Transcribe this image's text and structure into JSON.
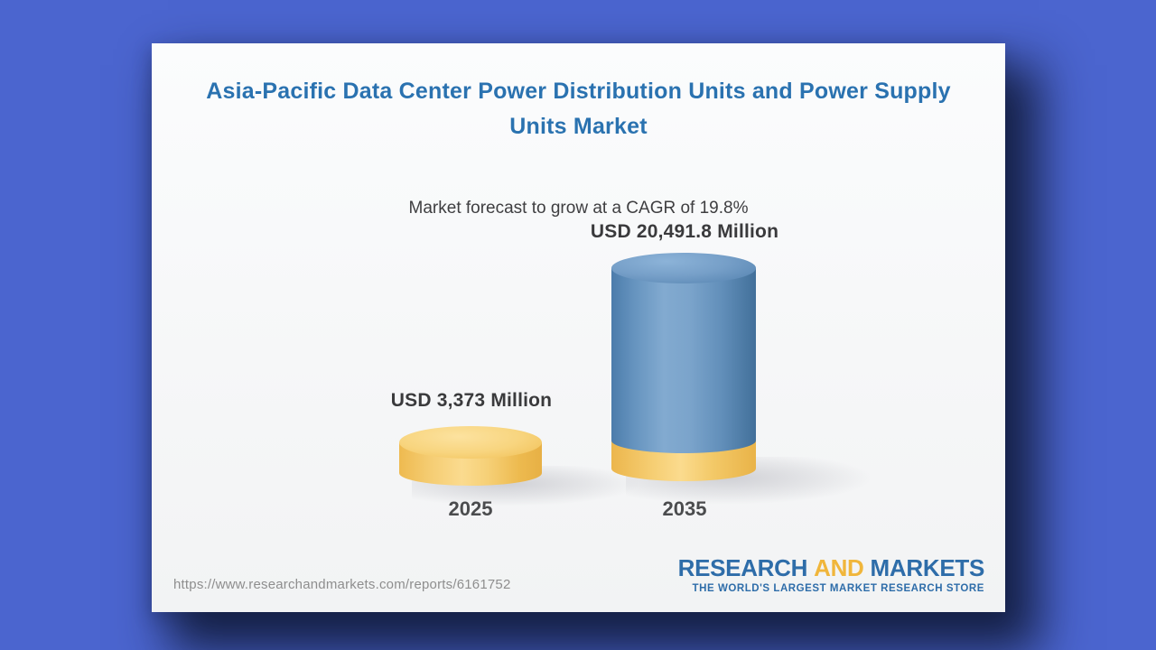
{
  "page": {
    "background_color": "#4b65cf",
    "card_color": "#f7f8f9",
    "shadow_color": "#13203f"
  },
  "chart_data": {
    "type": "bar",
    "title": "Asia-Pacific Data Center Power Distribution Units and Power Supply Units Market",
    "subtitle": "Market forecast to grow at a CAGR of 19.8%",
    "cagr_percent": 19.8,
    "unit": "USD Million",
    "categories": [
      "2025",
      "2035"
    ],
    "values": [
      3373,
      20491.8
    ],
    "bars": [
      {
        "category": "2025",
        "value": 3373,
        "label": "USD 3,373 Million",
        "color": "#f3c869"
      },
      {
        "category": "2035",
        "value": 20491.8,
        "label": "USD 20,491.8 Million",
        "color": "#6d9cc6",
        "base_color": "#f3c869"
      }
    ],
    "title_color": "#2a72b0",
    "label_color": "#3a3a3c",
    "legend": "none",
    "grid": "off"
  },
  "footer": {
    "url": "https://www.researchandmarkets.com/reports/6161752",
    "logo": {
      "word1": "RESEARCH",
      "word2": "AND",
      "word3": "MARKETS",
      "tagline": "THE WORLD'S LARGEST MARKET RESEARCH STORE",
      "blue": "#2e6da9",
      "yellow": "#f0b63b"
    }
  }
}
